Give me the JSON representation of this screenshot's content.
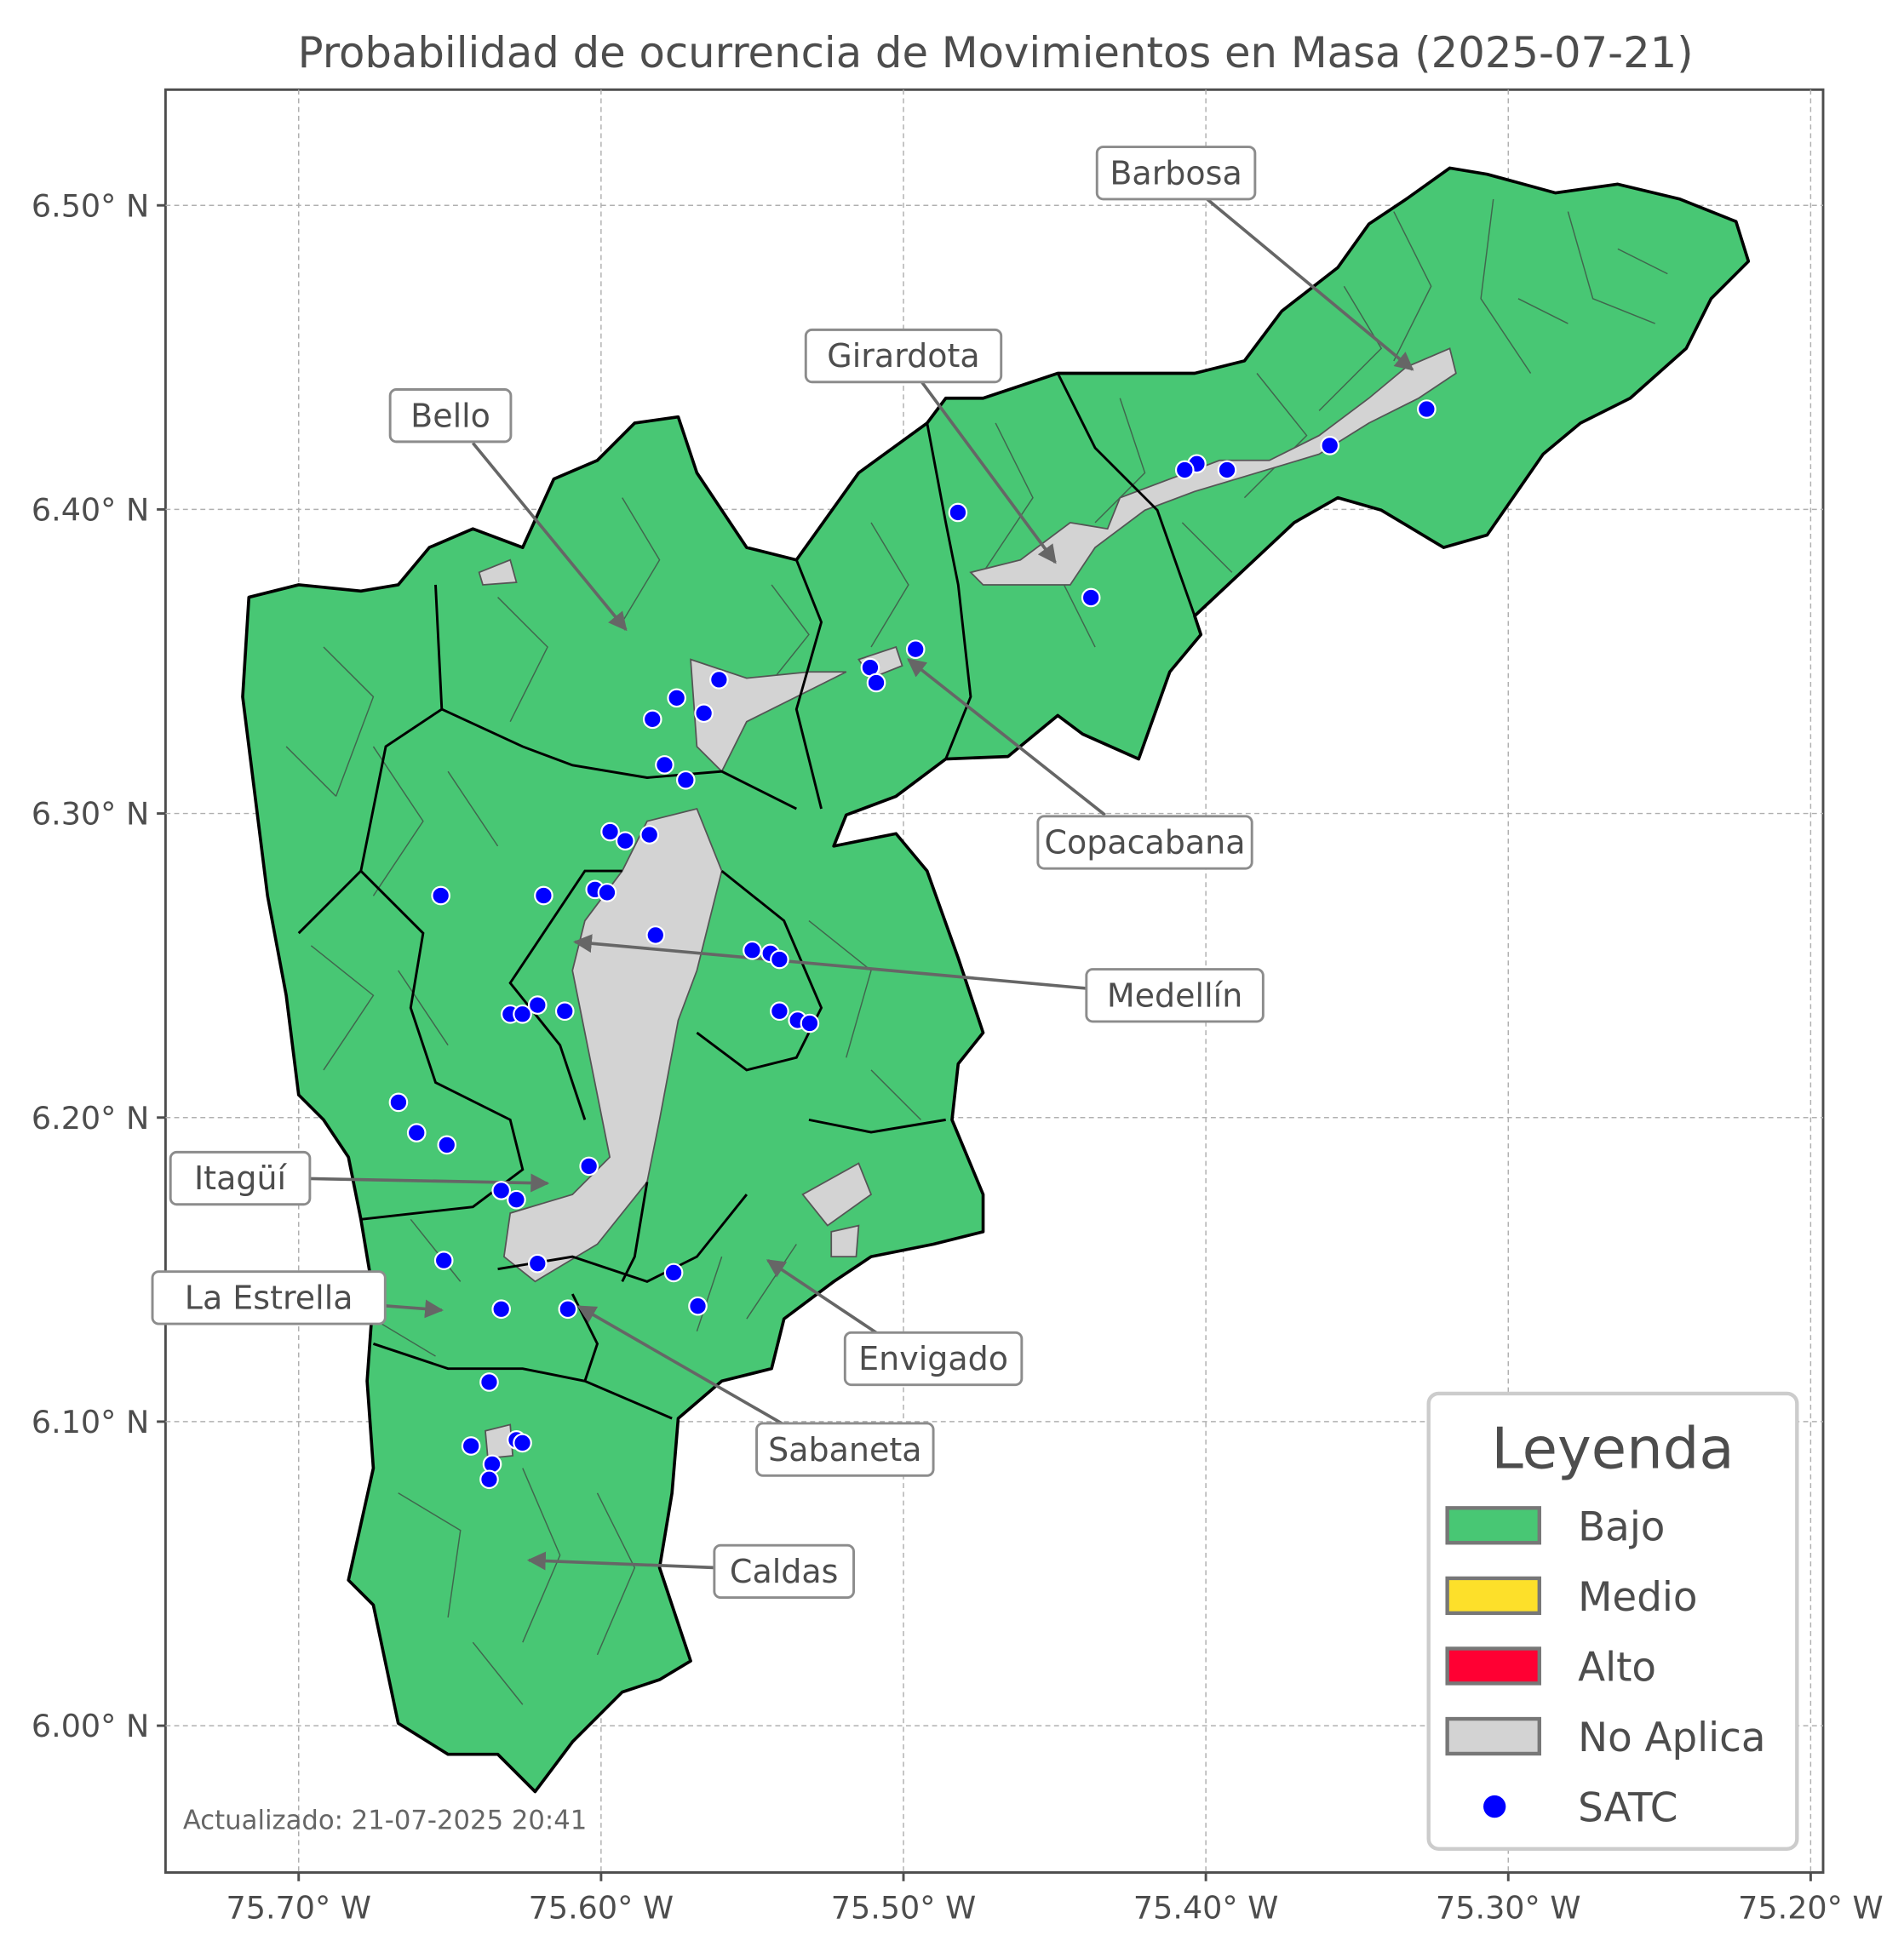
{
  "title": "Probabilidad de ocurrencia de Movimientos en Masa (2025-07-21)",
  "updated_note": "Actualizado: 21-07-2025 20:41",
  "axes": {
    "x_ticks": [
      "75.70° W",
      "75.60° W",
      "75.50° W",
      "75.40° W",
      "75.30° W",
      "75.20° W"
    ],
    "x_tick_values": [
      -75.7,
      -75.6,
      -75.5,
      -75.4,
      -75.3,
      -75.2
    ],
    "y_ticks": [
      "6.50° N",
      "6.40° N",
      "6.30° N",
      "6.20° N",
      "6.10° N",
      "6.00° N"
    ],
    "y_tick_values": [
      6.5,
      6.4,
      6.3,
      6.2,
      6.1,
      6.0
    ],
    "lon_range": [
      -75.744,
      -75.196
    ],
    "lat_range": [
      5.954,
      6.54
    ],
    "grid": true
  },
  "municipalities": [
    "Barbosa",
    "Girardota",
    "Bello",
    "Copacabana",
    "Medellín",
    "Itagüí",
    "La Estrella",
    "Envigado",
    "Sabaneta",
    "Caldas"
  ],
  "legend": {
    "title": "Leyenda",
    "placement": "bottom-right",
    "items": [
      {
        "label": "Bajo",
        "color": "#48c774",
        "type": "patch"
      },
      {
        "label": "Medio",
        "color": "#fde02a",
        "type": "patch"
      },
      {
        "label": "Alto",
        "color": "#ff0033",
        "type": "patch"
      },
      {
        "label": "No Aplica",
        "color": "#d3d3d3",
        "type": "patch"
      },
      {
        "label": "SATC",
        "color": "#0000ff",
        "type": "point"
      }
    ]
  },
  "colors": {
    "bajo": "#48c774",
    "no_aplica": "#d3d3d3",
    "satc": "#0000ff",
    "boundary": "#000000"
  },
  "satc_points": [
    [
      -75.327,
      6.433
    ],
    [
      -75.359,
      6.421
    ],
    [
      -75.393,
      6.413
    ],
    [
      -75.403,
      6.415
    ],
    [
      -75.407,
      6.413
    ],
    [
      -75.482,
      6.399
    ],
    [
      -75.438,
      6.371
    ],
    [
      -75.496,
      6.354
    ],
    [
      -75.511,
      6.348
    ],
    [
      -75.509,
      6.343
    ],
    [
      -75.561,
      6.344
    ],
    [
      -75.575,
      6.338
    ],
    [
      -75.566,
      6.333
    ],
    [
      -75.583,
      6.331
    ],
    [
      -75.579,
      6.316
    ],
    [
      -75.572,
      6.311
    ],
    [
      -75.597,
      6.294
    ],
    [
      -75.592,
      6.291
    ],
    [
      -75.584,
      6.293
    ],
    [
      -75.619,
      6.273
    ],
    [
      -75.653,
      6.273
    ],
    [
      -75.602,
      6.275
    ],
    [
      -75.598,
      6.274
    ],
    [
      -75.582,
      6.26
    ],
    [
      -75.55,
      6.255
    ],
    [
      -75.544,
      6.254
    ],
    [
      -75.541,
      6.252
    ],
    [
      -75.541,
      6.235
    ],
    [
      -75.535,
      6.232
    ],
    [
      -75.531,
      6.231
    ],
    [
      -75.621,
      6.237
    ],
    [
      -75.63,
      6.234
    ],
    [
      -75.626,
      6.234
    ],
    [
      -75.612,
      6.235
    ],
    [
      -75.667,
      6.205
    ],
    [
      -75.661,
      6.195
    ],
    [
      -75.651,
      6.191
    ],
    [
      -75.604,
      6.184
    ],
    [
      -75.633,
      6.176
    ],
    [
      -75.628,
      6.173
    ],
    [
      -75.652,
      6.153
    ],
    [
      -75.621,
      6.152
    ],
    [
      -75.576,
      6.149
    ],
    [
      -75.568,
      6.138
    ],
    [
      -75.633,
      6.137
    ],
    [
      -75.611,
      6.137
    ],
    [
      -75.637,
      6.113
    ],
    [
      -75.643,
      6.092
    ],
    [
      -75.636,
      6.086
    ],
    [
      -75.637,
      6.081
    ],
    [
      -75.628,
      6.094
    ],
    [
      -75.626,
      6.093
    ]
  ]
}
